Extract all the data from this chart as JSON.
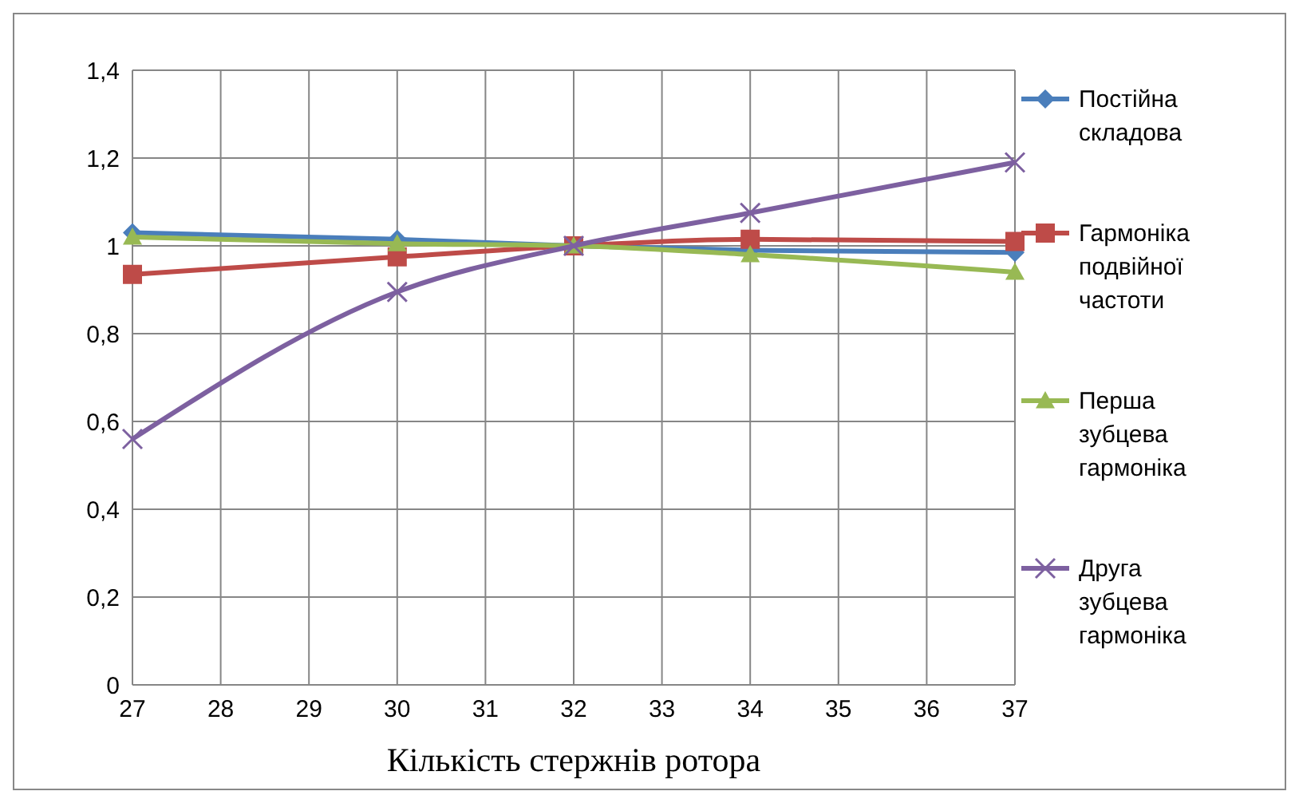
{
  "chart_data": {
    "type": "line",
    "xlabel": "Кількість стержнів ротора",
    "x": [
      27,
      30,
      32,
      34,
      37
    ],
    "xlim": [
      27,
      37
    ],
    "xticks": [
      27,
      28,
      29,
      30,
      31,
      32,
      33,
      34,
      35,
      36,
      37
    ],
    "ylim": [
      0,
      1.4
    ],
    "yticks": [
      0,
      {
        "value": 0.2,
        "label": "0,2"
      },
      {
        "value": 0.4,
        "label": "0,4"
      },
      {
        "value": 0.6,
        "label": "0,6"
      },
      {
        "value": 0.8,
        "label": "0,8"
      },
      1,
      {
        "value": 1.2,
        "label": "1,2"
      },
      {
        "value": 1.4,
        "label": "1,4"
      }
    ],
    "grid": true,
    "legend": "right",
    "line_style": "solid",
    "series": [
      {
        "name": "Постійна складова",
        "color": "#4a7ebb",
        "marker": "diamond",
        "values": [
          1.03,
          1.015,
          1.0,
          0.99,
          0.985
        ]
      },
      {
        "name": "Гармоніка подвійної частоти",
        "color": "#be4b48",
        "marker": "square",
        "values": [
          0.935,
          0.975,
          1.0,
          1.015,
          1.01
        ]
      },
      {
        "name": "Перша зубцева гармоніка",
        "color": "#98b954",
        "marker": "triangle",
        "values": [
          1.02,
          1.005,
          1.0,
          0.98,
          0.94
        ]
      },
      {
        "name": "Друга зубцева гармоніка",
        "color": "#7d60a0",
        "marker": "cross",
        "values": [
          0.56,
          0.895,
          1.0,
          1.075,
          1.19
        ]
      }
    ]
  }
}
